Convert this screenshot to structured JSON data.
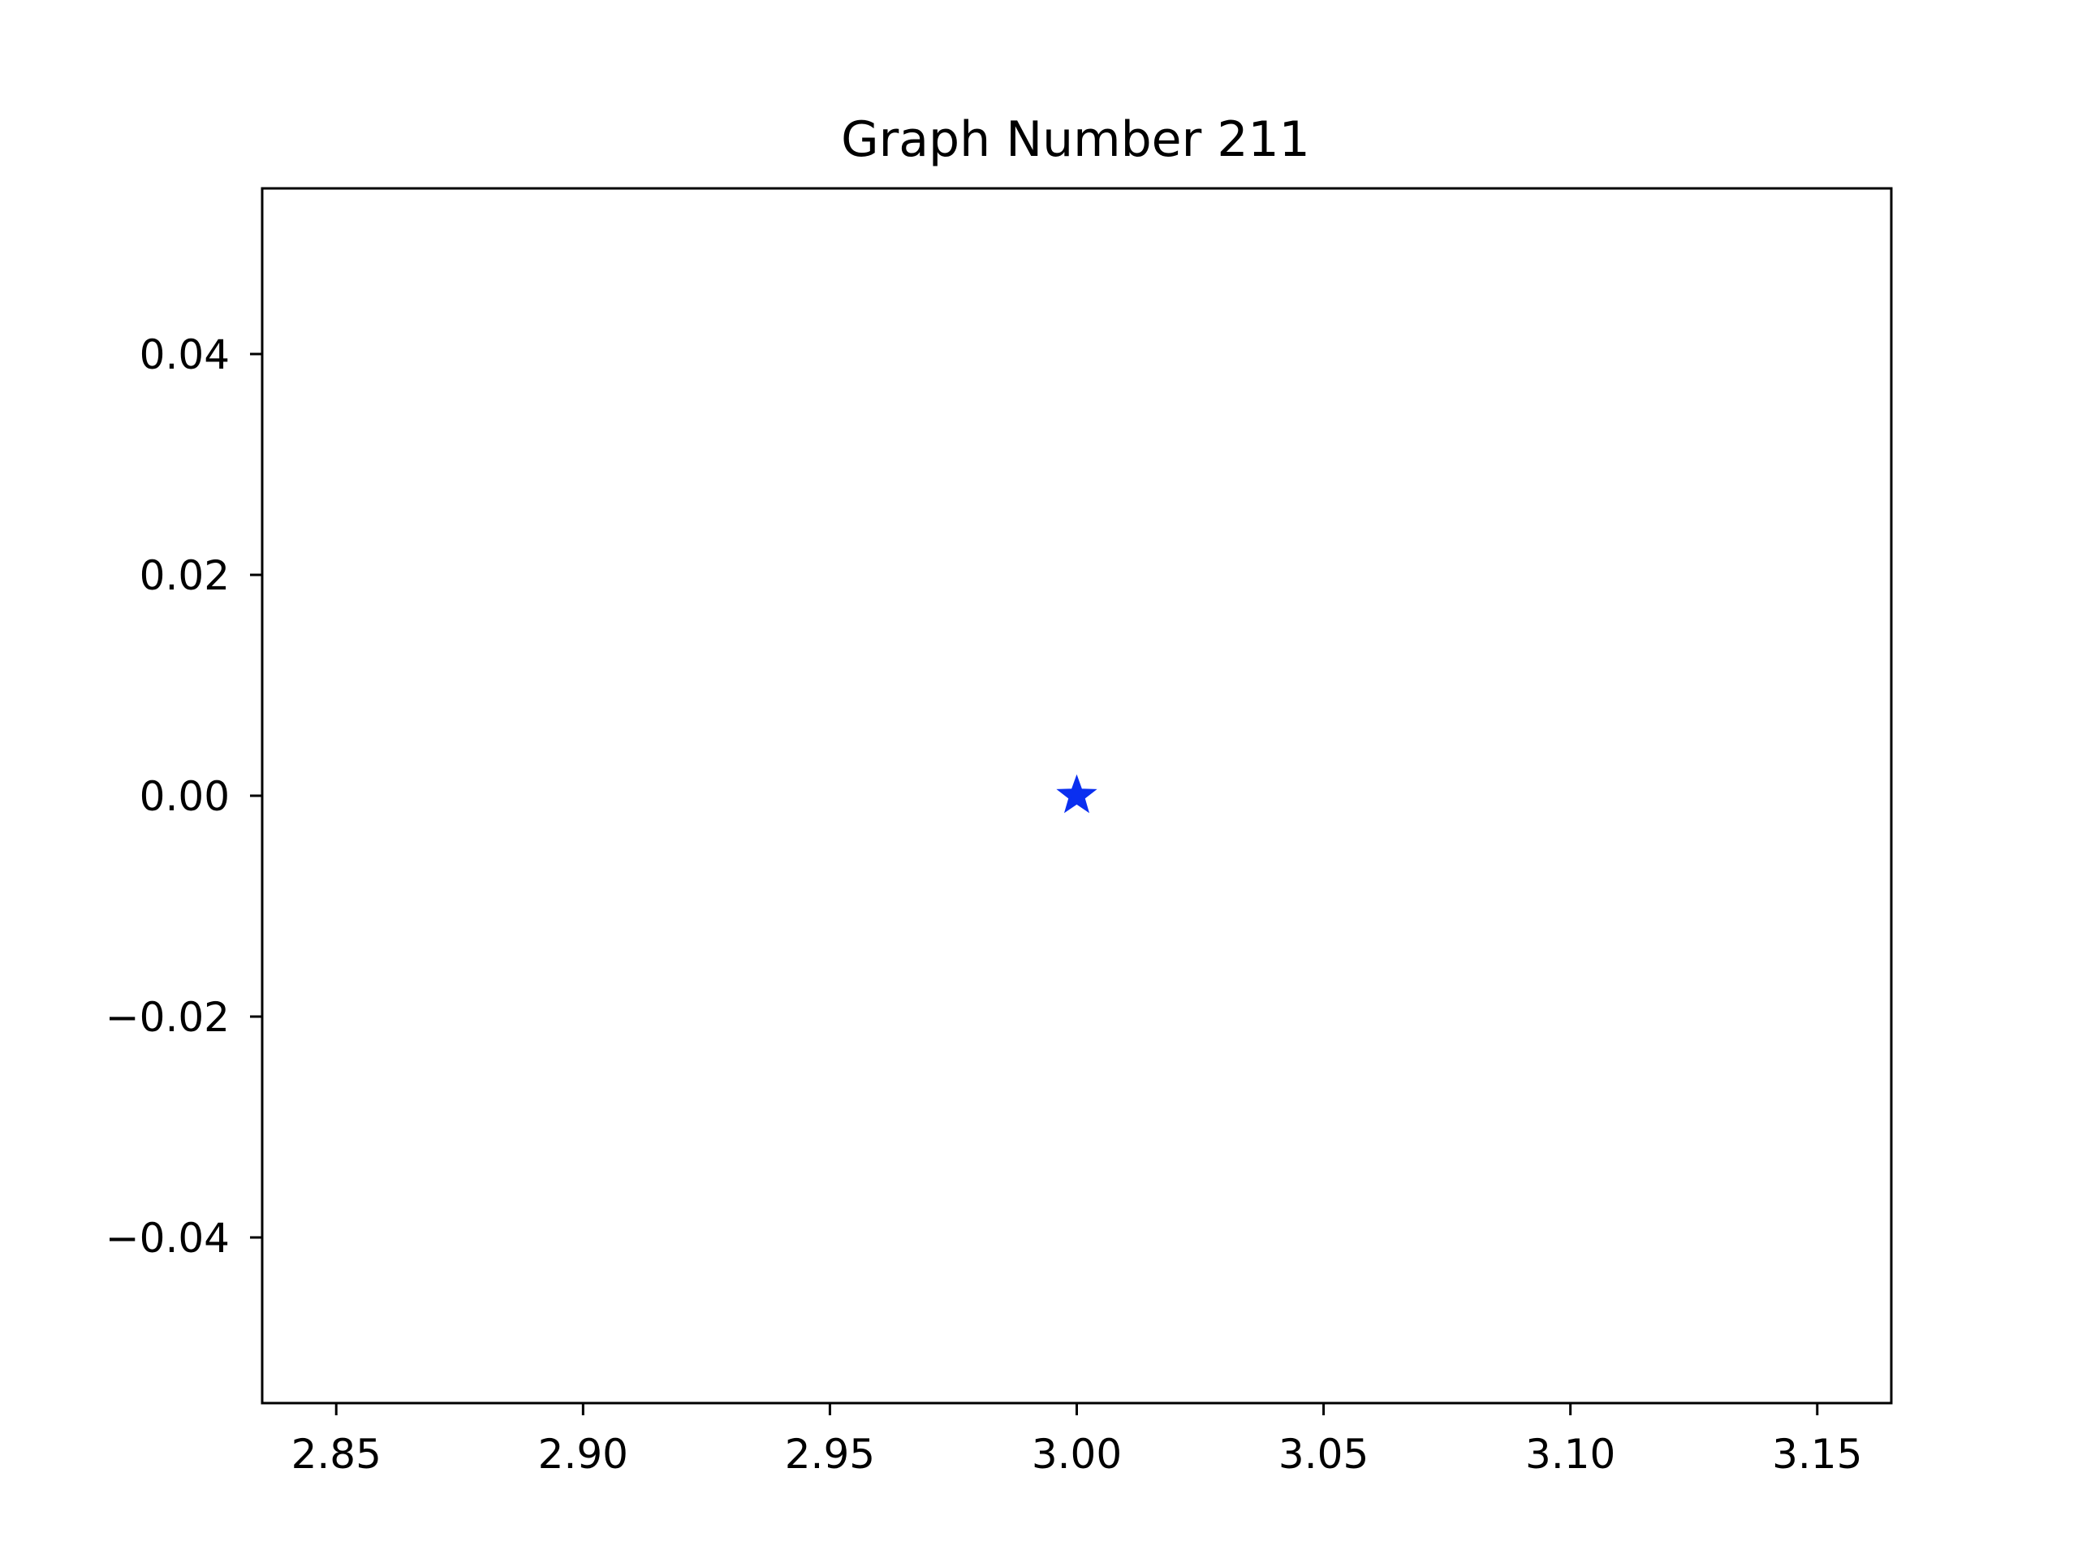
{
  "chart_data": {
    "type": "scatter",
    "title": "Graph Number 211",
    "xlabel": "",
    "ylabel": "",
    "xlim": [
      2.835,
      3.165
    ],
    "ylim": [
      -0.055,
      0.055
    ],
    "x_ticks": [
      2.85,
      2.9,
      2.95,
      3.0,
      3.05,
      3.1,
      3.15
    ],
    "x_tick_labels": [
      "2.85",
      "2.90",
      "2.95",
      "3.00",
      "3.05",
      "3.10",
      "3.15"
    ],
    "y_ticks": [
      0.04,
      0.02,
      0.0,
      -0.02,
      -0.04
    ],
    "y_tick_labels": [
      "0.04",
      "0.02",
      "0.00",
      "−0.02",
      "−0.04"
    ],
    "grid": false,
    "series": [
      {
        "marker": "star",
        "color": "#0a2ff0",
        "points": [
          {
            "x": 3.0,
            "y": 0.0
          }
        ]
      }
    ]
  }
}
